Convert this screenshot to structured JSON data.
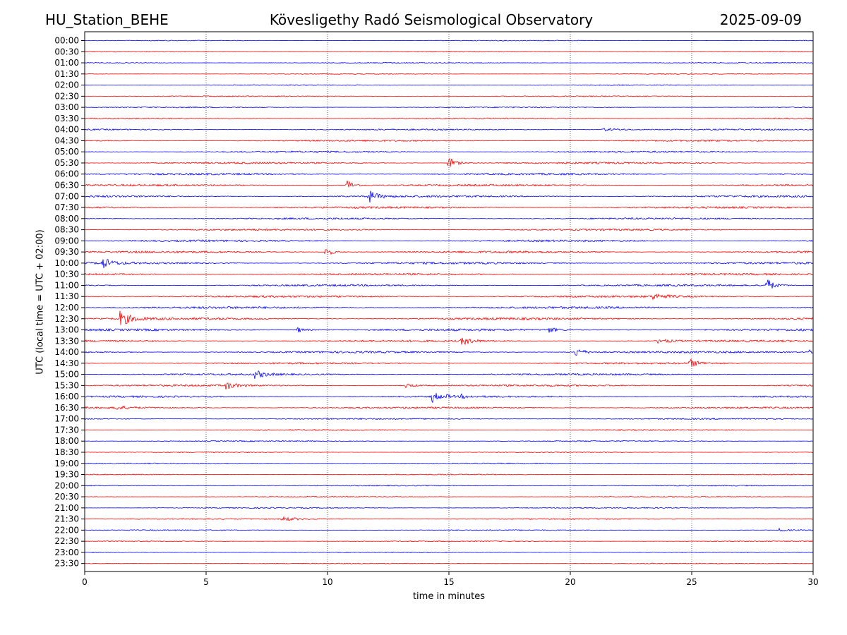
{
  "header": {
    "station": "HU_Station_BEHE",
    "title": "Kövesligethy Radó Seismological Observatory",
    "date": "2025-09-09"
  },
  "chart_data": {
    "type": "line",
    "title": "Kövesligethy Radó Seismological Observatory",
    "xlabel": "time in minutes",
    "ylabel": "UTC (local time = UTC + 02:00)",
    "xlim": [
      0,
      30
    ],
    "x_ticks": [
      0,
      5,
      10,
      15,
      20,
      25,
      30
    ],
    "grid": "vertical dotted lines at 5, 10, 15, 20, 25",
    "trace_colors": [
      "#0000ff",
      "#ff0000"
    ],
    "rows": [
      "00:00",
      "00:30",
      "01:00",
      "01:30",
      "02:00",
      "02:30",
      "03:00",
      "03:30",
      "04:00",
      "04:30",
      "05:00",
      "05:30",
      "06:00",
      "06:30",
      "07:00",
      "07:30",
      "08:00",
      "08:30",
      "09:00",
      "09:30",
      "10:00",
      "10:30",
      "11:00",
      "11:30",
      "12:00",
      "12:30",
      "13:00",
      "13:30",
      "14:00",
      "14:30",
      "15:00",
      "15:30",
      "16:00",
      "16:30",
      "17:00",
      "17:30",
      "18:00",
      "18:30",
      "19:00",
      "19:30",
      "20:00",
      "20:30",
      "21:00",
      "21:30",
      "22:00",
      "22:30",
      "23:00",
      "23:30"
    ],
    "noise_level": [
      0.6,
      0.6,
      0.7,
      0.6,
      0.7,
      0.7,
      0.8,
      0.8,
      1.0,
      1.2,
      1.2,
      1.3,
      1.4,
      1.4,
      1.4,
      1.4,
      1.3,
      1.3,
      1.4,
      1.5,
      1.5,
      1.4,
      1.3,
      1.4,
      1.6,
      1.6,
      1.6,
      1.4,
      1.4,
      1.3,
      1.3,
      1.3,
      1.3,
      1.2,
      1.0,
      0.9,
      0.8,
      0.7,
      0.7,
      0.7,
      0.7,
      0.7,
      0.8,
      0.8,
      0.7,
      0.7,
      0.6,
      0.6
    ],
    "events": [
      {
        "row": "04:00",
        "t": 21.3,
        "amp": 2.2,
        "dur": 0.9
      },
      {
        "row": "05:30",
        "t": 14.95,
        "amp": 11,
        "dur": 0.25
      },
      {
        "row": "06:30",
        "t": 10.75,
        "amp": 10,
        "dur": 0.25
      },
      {
        "row": "07:00",
        "t": 11.65,
        "amp": 11,
        "dur": 0.3
      },
      {
        "row": "09:30",
        "t": 9.9,
        "amp": 8,
        "dur": 0.25
      },
      {
        "row": "10:00",
        "t": 0.7,
        "amp": 9,
        "dur": 0.3
      },
      {
        "row": "11:00",
        "t": 28.05,
        "amp": 12,
        "dur": 0.25
      },
      {
        "row": "11:30",
        "t": 23.4,
        "amp": 4,
        "dur": 0.5
      },
      {
        "row": "12:30",
        "t": 1.45,
        "amp": 11,
        "dur": 0.4
      },
      {
        "row": "13:00",
        "t": 8.7,
        "amp": 5,
        "dur": 0.3
      },
      {
        "row": "13:00",
        "t": 19.1,
        "amp": 4,
        "dur": 0.3
      },
      {
        "row": "13:30",
        "t": 15.5,
        "amp": 6,
        "dur": 0.4
      },
      {
        "row": "13:30",
        "t": 23.6,
        "amp": 4,
        "dur": 0.4
      },
      {
        "row": "14:00",
        "t": 20.2,
        "amp": 7,
        "dur": 0.3
      },
      {
        "row": "14:00",
        "t": 29.8,
        "amp": 4,
        "dur": 0.2
      },
      {
        "row": "14:30",
        "t": 24.9,
        "amp": 6,
        "dur": 0.35
      },
      {
        "row": "15:00",
        "t": 7.0,
        "amp": 6,
        "dur": 0.35
      },
      {
        "row": "15:30",
        "t": 5.8,
        "amp": 5,
        "dur": 0.4
      },
      {
        "row": "15:30",
        "t": 13.2,
        "amp": 4,
        "dur": 0.3
      },
      {
        "row": "16:00",
        "t": 14.3,
        "amp": 10,
        "dur": 0.2
      },
      {
        "row": "16:00",
        "t": 14.8,
        "amp": 3,
        "dur": 0.2
      },
      {
        "row": "16:00",
        "t": 15.5,
        "amp": 3,
        "dur": 0.2
      },
      {
        "row": "16:30",
        "t": 1.2,
        "amp": 3,
        "dur": 0.5
      },
      {
        "row": "21:30",
        "t": 8.1,
        "amp": 3,
        "dur": 0.6
      },
      {
        "row": "22:00",
        "t": 28.6,
        "amp": 2,
        "dur": 0.3
      }
    ]
  }
}
